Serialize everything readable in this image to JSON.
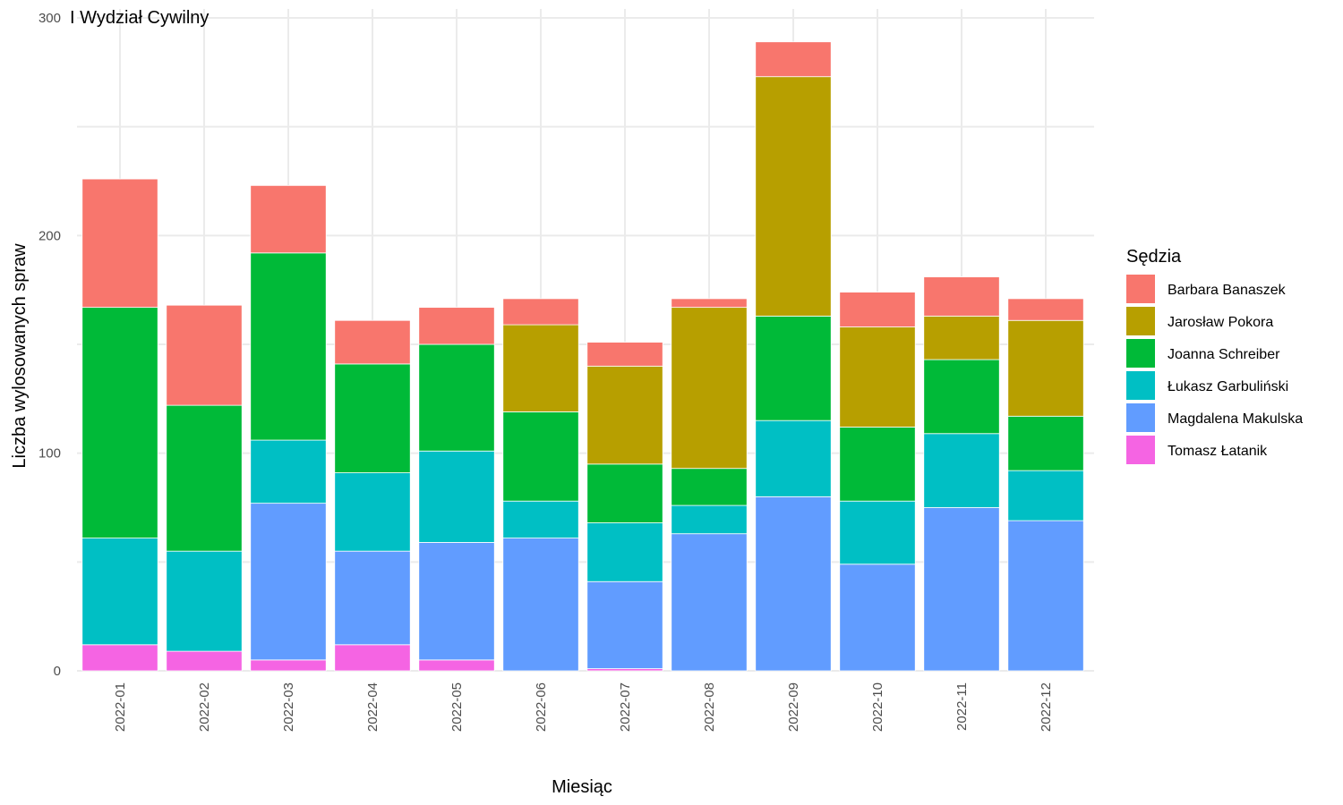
{
  "chart_data": {
    "type": "bar",
    "stacked": true,
    "title": "I Wydział Cywilny",
    "xlabel": "Miesiąc",
    "ylabel": "Liczba wylosowanych spraw",
    "ylim": [
      0,
      300
    ],
    "yticks": [
      0,
      100,
      200,
      300
    ],
    "grid": true,
    "legend": {
      "title": "Sędzia",
      "placement": "right"
    },
    "categories": [
      "2022-01",
      "2022-02",
      "2022-03",
      "2022-04",
      "2022-05",
      "2022-06",
      "2022-07",
      "2022-08",
      "2022-09",
      "2022-10",
      "2022-11",
      "2022-12"
    ],
    "series": [
      {
        "name": "Tomasz Łatanik",
        "color": "#F564E3",
        "values": [
          12,
          9,
          5,
          12,
          5,
          0,
          1,
          0,
          0,
          0,
          0,
          0
        ]
      },
      {
        "name": "Magdalena Makulska",
        "color": "#619CFF",
        "values": [
          0,
          0,
          72,
          43,
          54,
          61,
          40,
          63,
          80,
          49,
          75,
          69
        ]
      },
      {
        "name": "Łukasz Garbuliński",
        "color": "#00BFC4",
        "values": [
          49,
          46,
          29,
          36,
          42,
          17,
          27,
          13,
          35,
          29,
          34,
          23
        ]
      },
      {
        "name": "Joanna Schreiber",
        "color": "#00BA38",
        "values": [
          106,
          67,
          86,
          50,
          49,
          41,
          27,
          17,
          48,
          34,
          34,
          25
        ]
      },
      {
        "name": "Jarosław Pokora",
        "color": "#B79F00",
        "values": [
          0,
          0,
          0,
          0,
          0,
          40,
          45,
          74,
          110,
          46,
          20,
          44
        ]
      },
      {
        "name": "Barbara Banaszek",
        "color": "#F8766D",
        "values": [
          59,
          46,
          31,
          20,
          17,
          12,
          11,
          4,
          16,
          16,
          18,
          10
        ]
      }
    ],
    "legend_order": [
      "Barbara Banaszek",
      "Jarosław Pokora",
      "Joanna Schreiber",
      "Łukasz Garbuliński",
      "Magdalena Makulska",
      "Tomasz Łatanik"
    ]
  }
}
